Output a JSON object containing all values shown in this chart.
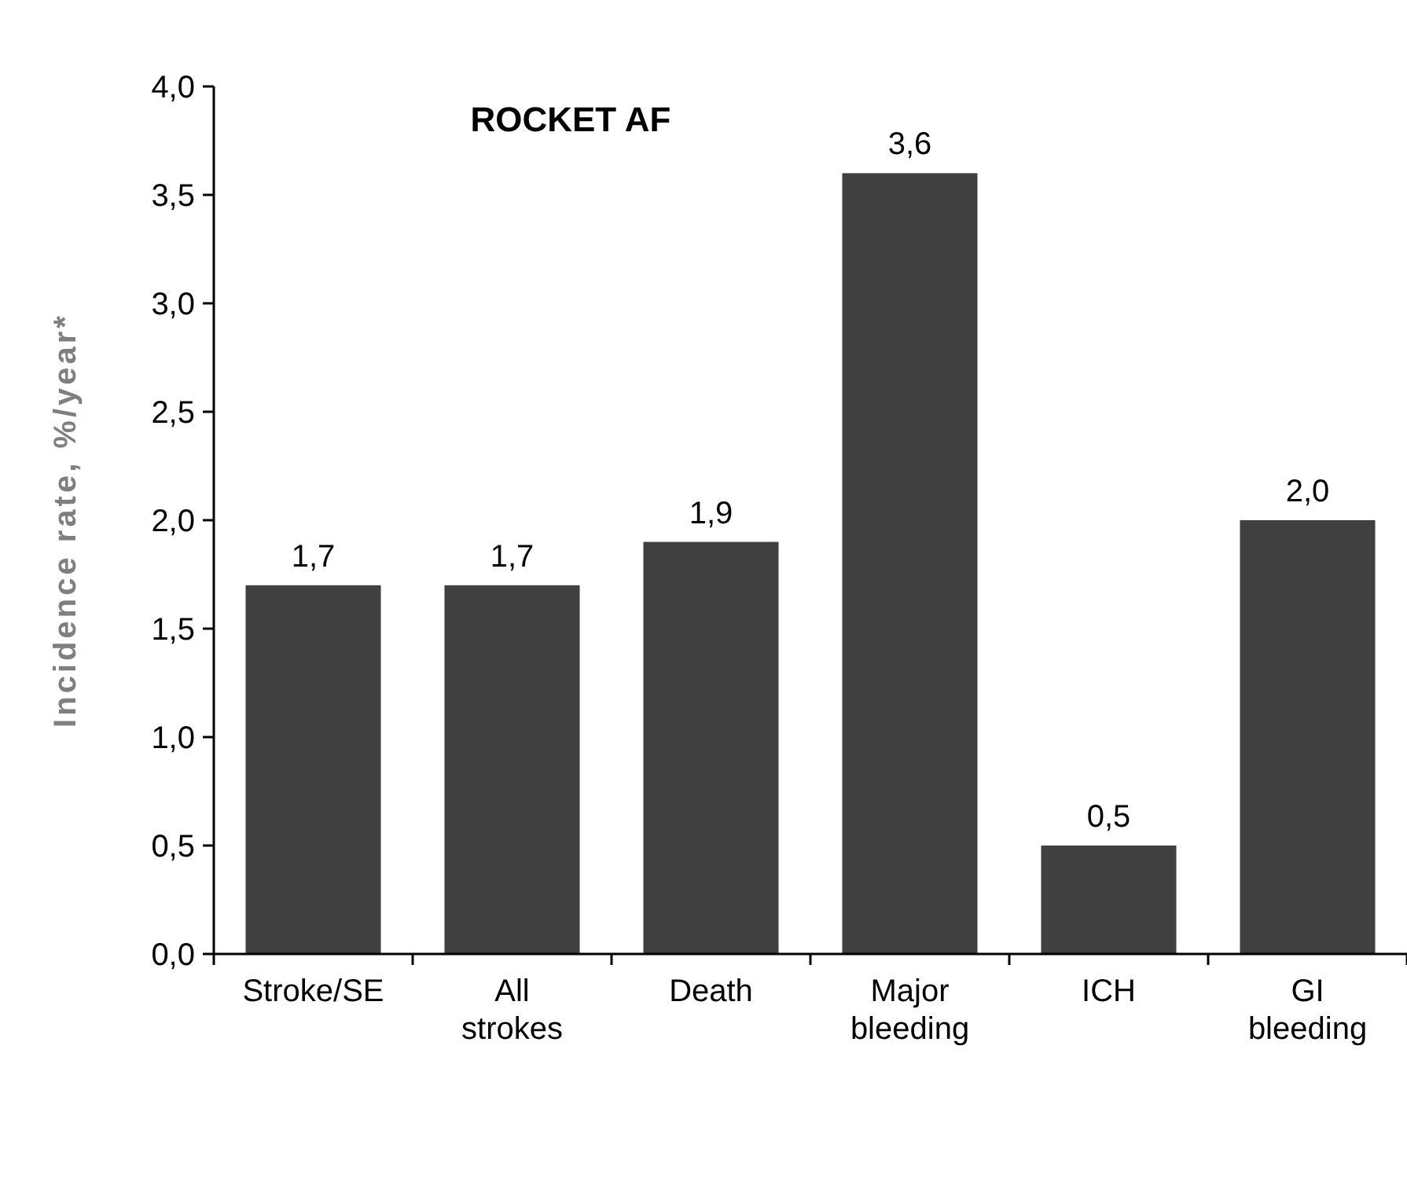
{
  "chart_data": {
    "type": "bar",
    "title": "ROCKET AF",
    "ylabel": "Incidence rate, %/year*",
    "categories": [
      "Stroke/SE",
      "All strokes",
      "Death",
      "Major bleeding",
      "ICH",
      "GI bleeding"
    ],
    "values": [
      1.7,
      1.7,
      1.9,
      3.6,
      0.5,
      2.0
    ],
    "value_labels": [
      "1,7",
      "1,7",
      "1,9",
      "3,6",
      "0,5",
      "2,0"
    ],
    "color": "#404040",
    "ylim": [
      0,
      4
    ],
    "yticks": [
      {
        "value": 0,
        "label": "0,0"
      },
      {
        "value": 0.5,
        "label": "0,5"
      },
      {
        "value": 1,
        "label": "1,0"
      },
      {
        "value": 1.5,
        "label": "1,5"
      },
      {
        "value": 2,
        "label": "2,0"
      },
      {
        "value": 2.5,
        "label": "2,5"
      },
      {
        "value": 3,
        "label": "3,0"
      },
      {
        "value": 3.5,
        "label": "3,5"
      },
      {
        "value": 4,
        "label": "4,0"
      }
    ],
    "grid": false
  }
}
